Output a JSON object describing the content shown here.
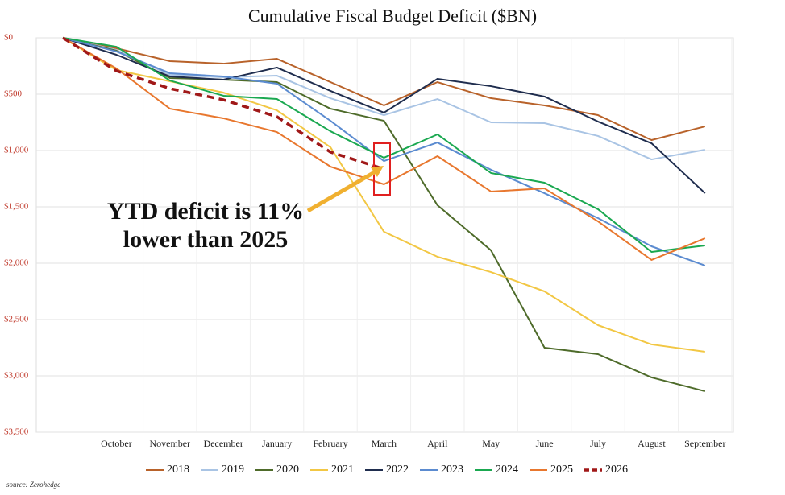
{
  "chart_data": {
    "type": "line",
    "title": "Cumulative Fiscal Budget Deficit ($BN)",
    "categories": [
      null,
      "October",
      "November",
      "December",
      "January",
      "February",
      "March",
      "April",
      "May",
      "June",
      "July",
      "August",
      "September"
    ],
    "ylim": [
      3500,
      0
    ],
    "yticks": [
      {
        "value": 0,
        "label": "$0"
      },
      {
        "value": 500,
        "label": "$500"
      },
      {
        "value": 1000,
        "label": "$1,000"
      },
      {
        "value": 1500,
        "label": "$1,500"
      },
      {
        "value": 2000,
        "label": "$2,000"
      },
      {
        "value": 2500,
        "label": "$2,500"
      },
      {
        "value": 3000,
        "label": "$3,000"
      },
      {
        "value": 3500,
        "label": "$3,500"
      }
    ],
    "grid": true,
    "legend": "bottom",
    "annotation": [
      "YTD deficit is 11%",
      "lower than 2025"
    ],
    "source": "source: Zerohedge",
    "series": [
      {
        "name": "2018",
        "color": "#b8622a",
        "values": [
          0,
          93,
          207,
          229,
          186,
          393,
          600,
          393,
          536,
          600,
          686,
          907,
          786
        ]
      },
      {
        "name": "2019",
        "color": "#a9c4e4",
        "values": [
          0,
          107,
          329,
          350,
          336,
          536,
          686,
          543,
          750,
          757,
          871,
          1079,
          993
        ]
      },
      {
        "name": "2020",
        "color": "#4e6b2a",
        "values": [
          0,
          114,
          357,
          371,
          393,
          629,
          736,
          1486,
          1886,
          2750,
          2807,
          3014,
          3136
        ]
      },
      {
        "name": "2021",
        "color": "#f2c744",
        "values": [
          0,
          286,
          386,
          486,
          643,
          971,
          1721,
          1943,
          2079,
          2250,
          2550,
          2721,
          2786
        ]
      },
      {
        "name": "2022",
        "color": "#1f2d4e",
        "values": [
          0,
          150,
          343,
          371,
          264,
          471,
          664,
          364,
          429,
          521,
          743,
          936,
          1379
        ]
      },
      {
        "name": "2023",
        "color": "#5b8bd0",
        "values": [
          0,
          121,
          314,
          343,
          407,
          736,
          1093,
          929,
          1171,
          1379,
          1600,
          1850,
          2021
        ]
      },
      {
        "name": "2024",
        "color": "#1aa850",
        "values": [
          0,
          79,
          379,
          514,
          543,
          829,
          1064,
          857,
          1200,
          1286,
          1521,
          1900,
          1843
        ]
      },
      {
        "name": "2025",
        "color": "#e8772e",
        "values": [
          0,
          271,
          629,
          714,
          836,
          1143,
          1300,
          1050,
          1364,
          1336,
          1629,
          1971,
          1779
        ]
      },
      {
        "name": "2026",
        "color": "#a01818",
        "dashed": true,
        "values": [
          0,
          293,
          450,
          550,
          700,
          1014,
          1164,
          null,
          null,
          null,
          null,
          null,
          null
        ]
      }
    ]
  }
}
